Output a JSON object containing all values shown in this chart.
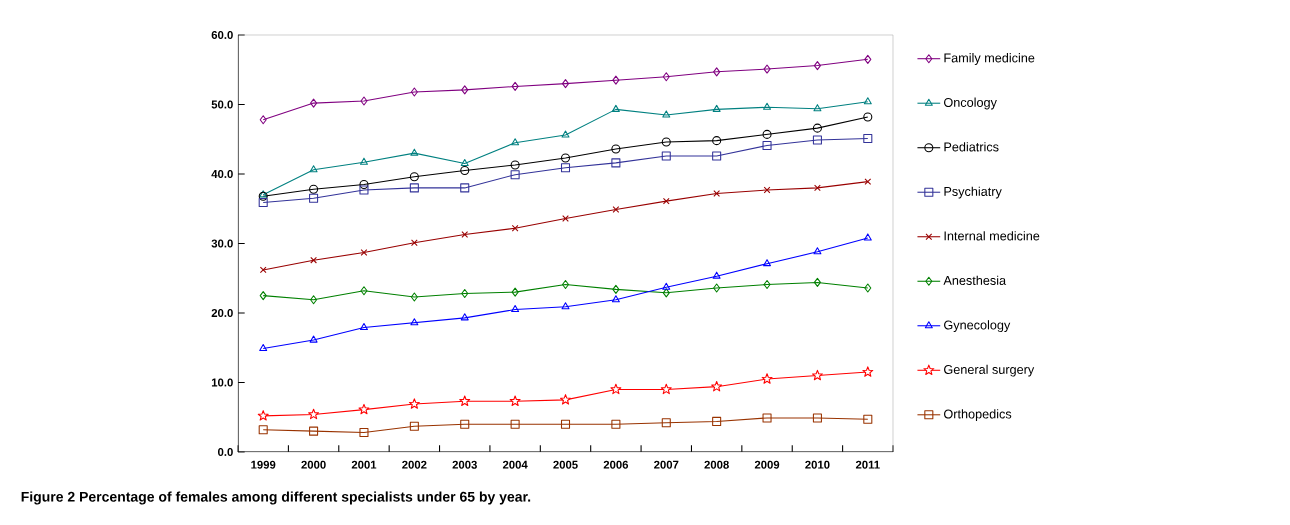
{
  "chart_data": {
    "type": "line",
    "title": "Figure 2 Percentage of females among different specialists under 65 by year.",
    "categories": [
      "1999",
      "2000",
      "2001",
      "2002",
      "2003",
      "2004",
      "2005",
      "2006",
      "2007",
      "2008",
      "2009",
      "2010",
      "2011"
    ],
    "ylim": [
      0,
      60
    ],
    "yticks": [
      {
        "value": 0,
        "label": "0.0"
      },
      {
        "value": 10,
        "label": "10.0"
      },
      {
        "value": 20,
        "label": "20.0"
      },
      {
        "value": 30,
        "label": "30.0"
      },
      {
        "value": 40,
        "label": "40.0"
      },
      {
        "value": 50,
        "label": "50.0"
      },
      {
        "value": 60,
        "label": "60.0"
      }
    ],
    "grid": false,
    "legend": "right",
    "series": [
      {
        "name": "Family medicine",
        "color": "#800080",
        "marker": "diamond",
        "values": [
          47.8,
          50.2,
          50.5,
          51.8,
          52.1,
          52.6,
          53.0,
          53.5,
          54.0,
          54.7,
          55.1,
          55.6,
          56.5
        ]
      },
      {
        "name": "Oncology",
        "color": "#008080",
        "marker": "triangle",
        "values": [
          37.0,
          40.6,
          41.7,
          43.0,
          41.5,
          44.5,
          45.6,
          49.3,
          48.5,
          49.3,
          49.6,
          49.4,
          50.4
        ]
      },
      {
        "name": "Pediatrics",
        "color": "#000000",
        "marker": "circle",
        "values": [
          36.8,
          37.8,
          38.5,
          39.6,
          40.5,
          41.3,
          42.3,
          43.6,
          44.6,
          44.8,
          45.7,
          46.6,
          48.2
        ]
      },
      {
        "name": "Psychiatry",
        "color": "#333399",
        "marker": "square",
        "values": [
          35.9,
          36.5,
          37.7,
          38.0,
          38.0,
          39.9,
          40.9,
          41.6,
          42.6,
          42.6,
          44.1,
          44.9,
          45.1
        ]
      },
      {
        "name": "Internal medicine",
        "color": "#990000",
        "marker": "cross",
        "values": [
          26.2,
          27.6,
          28.7,
          30.1,
          31.3,
          32.2,
          33.6,
          34.9,
          36.1,
          37.2,
          37.7,
          38.0,
          38.9
        ]
      },
      {
        "name": "Anesthesia",
        "color": "#008000",
        "marker": "diamond",
        "values": [
          22.5,
          21.9,
          23.2,
          22.3,
          22.8,
          23.0,
          24.1,
          23.4,
          22.9,
          23.6,
          24.1,
          24.4,
          23.6
        ]
      },
      {
        "name": "Gynecology",
        "color": "#0000ff",
        "marker": "triangle",
        "values": [
          14.9,
          16.1,
          17.9,
          18.6,
          19.3,
          20.5,
          20.9,
          21.9,
          23.7,
          25.3,
          27.1,
          28.8,
          30.8
        ]
      },
      {
        "name": "General surgery",
        "color": "#ff0000",
        "marker": "star",
        "values": [
          5.2,
          5.4,
          6.1,
          6.9,
          7.3,
          7.3,
          7.5,
          9.0,
          9.0,
          9.4,
          10.5,
          11.0,
          11.5
        ]
      },
      {
        "name": "Orthopedics",
        "color": "#993300",
        "marker": "square",
        "values": [
          3.2,
          3.0,
          2.8,
          3.7,
          4.0,
          4.0,
          4.0,
          4.0,
          4.2,
          4.4,
          4.9,
          4.9,
          4.7
        ]
      }
    ]
  }
}
